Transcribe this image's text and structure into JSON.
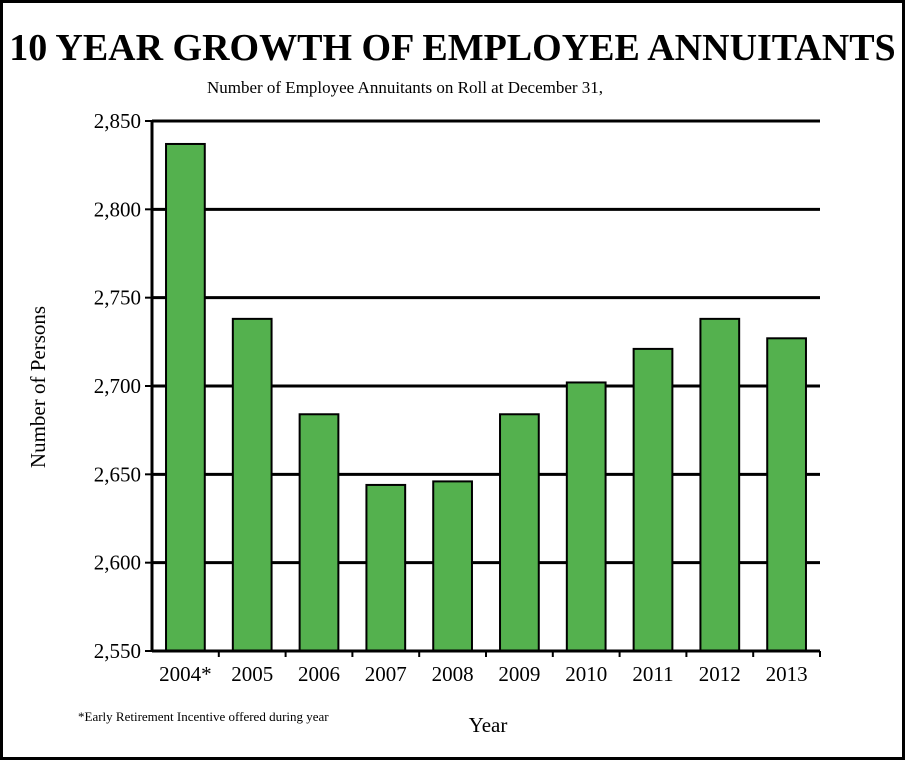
{
  "title": "10 YEAR GROWTH OF EMPLOYEE ANNUITANTS",
  "subtitle": "Number of Employee Annuitants on Roll at December 31,",
  "footnote": "*Early Retirement Incentive offered during year",
  "colors": {
    "bar_fill": "#54B14E",
    "bar_stroke": "#000000",
    "gridline": "#000000"
  },
  "chart_data": {
    "type": "bar",
    "title": "10 YEAR GROWTH OF EMPLOYEE ANNUITANTS",
    "subtitle": "Number of Employee Annuitants on Roll at December 31,",
    "xlabel": "Year",
    "ylabel": "Number of Persons",
    "categories": [
      "2004*",
      "2005",
      "2006",
      "2007",
      "2008",
      "2009",
      "2010",
      "2011",
      "2012",
      "2013"
    ],
    "values": [
      2837,
      2738,
      2684,
      2644,
      2646,
      2684,
      2702,
      2721,
      2738,
      2727
    ],
    "ylim": [
      2550,
      2850
    ],
    "yticks": [
      2550,
      2600,
      2650,
      2700,
      2750,
      2800,
      2850
    ],
    "ytick_labels": [
      "2,550",
      "2,600",
      "2,650",
      "2,700",
      "2,750",
      "2,800",
      "2,850"
    ],
    "grid": true,
    "legend": "none"
  }
}
